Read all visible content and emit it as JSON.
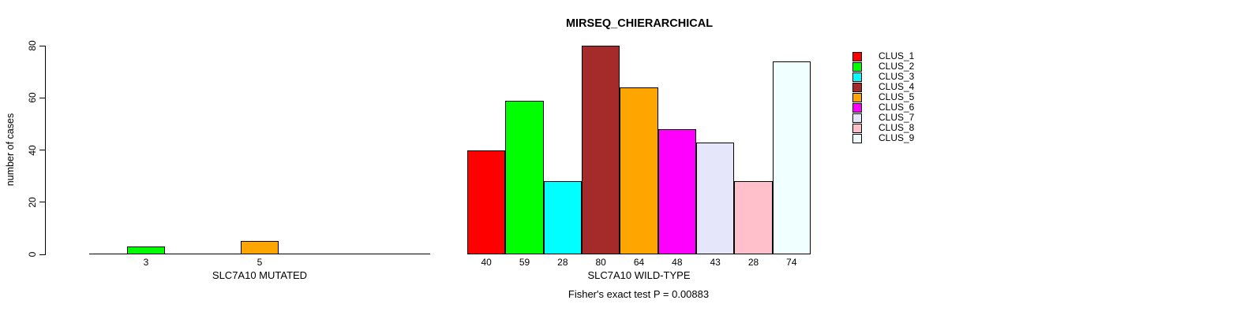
{
  "chart_data": {
    "type": "bar",
    "title": "MIRSEQ_CHIERARCHICAL",
    "ylabel": "number of cases",
    "ylim": [
      0,
      80
    ],
    "yticks": [
      0,
      20,
      40,
      60,
      80
    ],
    "grid": false,
    "legend_position": "top-right",
    "categories": [
      "CLUS_1",
      "CLUS_2",
      "CLUS_3",
      "CLUS_4",
      "CLUS_5",
      "CLUS_6",
      "CLUS_7",
      "CLUS_8",
      "CLUS_9"
    ],
    "colors": [
      "#FF0000",
      "#00FF00",
      "#00FFFF",
      "#A52A2A",
      "#FFA500",
      "#FF00FF",
      "#E6E6FA",
      "#FFC0CB",
      "#F0FFFF"
    ],
    "groups": [
      {
        "label": "SLC7A10 MUTATED",
        "values": [
          0,
          3,
          0,
          0,
          5,
          0,
          0,
          0,
          0
        ],
        "shown_bar_labels": [
          "",
          "3",
          "",
          "",
          "5",
          "",
          "",
          "",
          ""
        ]
      },
      {
        "label": "SLC7A10 WILD-TYPE",
        "values": [
          40,
          59,
          28,
          80,
          64,
          48,
          43,
          28,
          74
        ],
        "shown_bar_labels": [
          "40",
          "59",
          "28",
          "80",
          "64",
          "48",
          "43",
          "28",
          "74"
        ]
      }
    ],
    "footnote": "Fisher's exact test P = 0.00883"
  }
}
